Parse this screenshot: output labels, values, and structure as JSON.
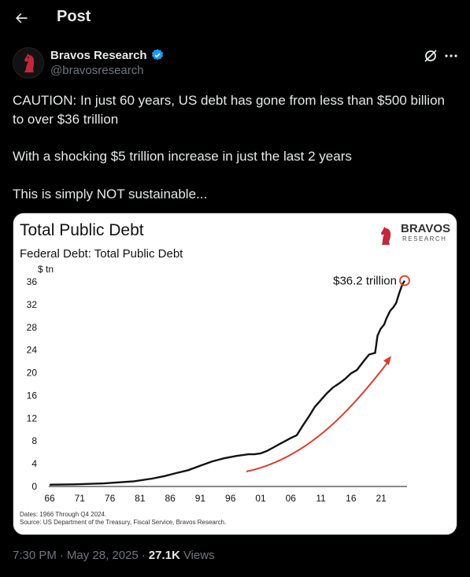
{
  "header": {
    "title": "Post"
  },
  "author": {
    "name": "Bravos Research",
    "handle": "@bravosresearch"
  },
  "post": {
    "line1": "CAUTION: In just 60 years, US debt has gone from less than $500 billion",
    "line2": "to over $36 trillion",
    "line3": "With a shocking $5 trillion increase in just the last 2 years",
    "line4": "This is simply NOT sustainable..."
  },
  "meta": {
    "time": "7:30 PM",
    "sep1": "·",
    "date": "May 28, 2025",
    "sep2": "·",
    "views_count": "27.1K",
    "views_label": "Views"
  },
  "colors": {
    "verified": "#1d9bf0",
    "accent_red": "#d8402e"
  },
  "chart_data": {
    "type": "line",
    "title": "Total Public Debt",
    "subtitle": "Federal Debt: Total Public Debt",
    "ylabel": "$ tn",
    "xlabel": "",
    "logo_text": "BRAVOS",
    "logo_subtext": "RESEARCH",
    "x_ticks": [
      "66",
      "71",
      "76",
      "81",
      "86",
      "91",
      "96",
      "01",
      "06",
      "11",
      "16",
      "21"
    ],
    "y_ticks": [
      "0",
      "4",
      "8",
      "12",
      "16",
      "20",
      "24",
      "28",
      "32",
      "36"
    ],
    "ylim": [
      0,
      36
    ],
    "xlim": [
      1966,
      2024.9
    ],
    "annotation": "$36.2 trillion",
    "notes": [
      "Dates: 1966 Through Q4 2024.",
      "Source: US Department of the Treasury, Fiscal Service, Bravos Research."
    ],
    "series": [
      {
        "values": [
          [
            1966,
            0.32
          ],
          [
            1970,
            0.37
          ],
          [
            1975,
            0.54
          ],
          [
            1980,
            0.91
          ],
          [
            1983,
            1.38
          ],
          [
            1985,
            1.82
          ],
          [
            1987,
            2.35
          ],
          [
            1989,
            2.86
          ],
          [
            1991,
            3.66
          ],
          [
            1993,
            4.41
          ],
          [
            1995,
            4.97
          ],
          [
            1997,
            5.37
          ],
          [
            1999,
            5.66
          ],
          [
            2000,
            5.67
          ],
          [
            2001,
            5.81
          ],
          [
            2002,
            6.23
          ],
          [
            2003,
            6.78
          ],
          [
            2004,
            7.38
          ],
          [
            2005,
            7.93
          ],
          [
            2006,
            8.51
          ],
          [
            2007,
            9.01
          ],
          [
            2008,
            10.7
          ],
          [
            2009,
            12.3
          ],
          [
            2010,
            14.0
          ],
          [
            2011,
            15.2
          ],
          [
            2012,
            16.4
          ],
          [
            2013,
            17.4
          ],
          [
            2014,
            18.1
          ],
          [
            2015,
            18.9
          ],
          [
            2016,
            19.9
          ],
          [
            2017,
            20.5
          ],
          [
            2018,
            21.9
          ],
          [
            2019,
            23.2
          ],
          [
            2020.0,
            23.5
          ],
          [
            2020.4,
            26.5
          ],
          [
            2020.9,
            27.7
          ],
          [
            2021.5,
            28.5
          ],
          [
            2021.9,
            29.6
          ],
          [
            2022.5,
            30.9
          ],
          [
            2023.0,
            31.5
          ],
          [
            2023.5,
            32.3
          ],
          [
            2024.0,
            34.0
          ],
          [
            2024.5,
            35.5
          ],
          [
            2024.9,
            36.2
          ]
        ]
      }
    ]
  }
}
